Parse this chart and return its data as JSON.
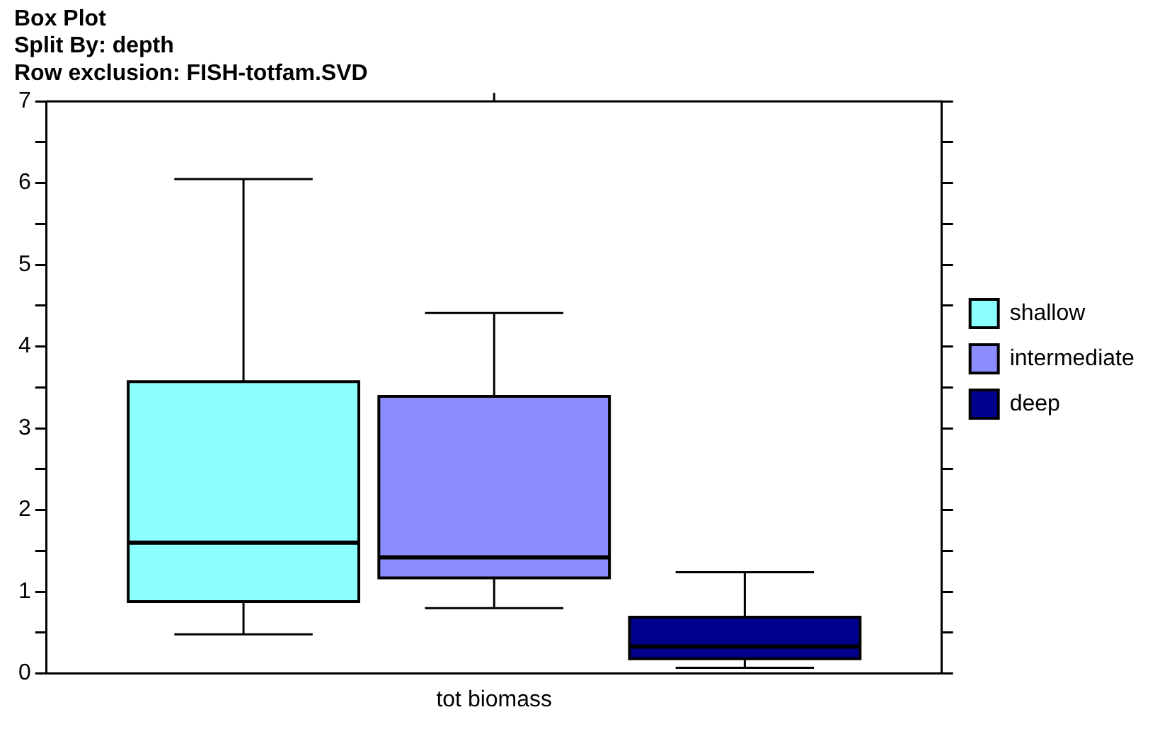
{
  "chart_data": {
    "type": "box",
    "title": "Box Plot",
    "subtitle": "Split By: depth",
    "annotations": [
      "Row exclusion: FISH-totfam.SVD"
    ],
    "categories": [
      "tot biomass"
    ],
    "series": [
      {
        "name": "shallow",
        "color": "#8cffff",
        "boxes": [
          {
            "low": 0.48,
            "q1": 0.88,
            "median": 1.6,
            "q3": 3.57,
            "high": 6.05
          }
        ]
      },
      {
        "name": "intermediate",
        "color": "#8c8cff",
        "boxes": [
          {
            "low": 0.8,
            "q1": 1.17,
            "median": 1.42,
            "q3": 3.39,
            "high": 4.41
          }
        ]
      },
      {
        "name": "deep",
        "color": "#00008c",
        "boxes": [
          {
            "low": 0.07,
            "q1": 0.18,
            "median": 0.33,
            "q3": 0.69,
            "high": 1.24
          }
        ]
      }
    ],
    "ylim": [
      0,
      7
    ],
    "yticks": [
      0,
      {
        "value": 0.5,
        "label": null
      },
      1,
      {
        "value": 1.5,
        "label": null
      },
      2,
      {
        "value": 2.5,
        "label": null
      },
      3,
      {
        "value": 3.5,
        "label": null
      },
      4,
      {
        "value": 4.5,
        "label": null
      },
      5,
      {
        "value": 5.5,
        "label": null
      },
      6,
      {
        "value": 6.5,
        "label": null
      },
      7
    ],
    "grid": false,
    "legend": "right"
  }
}
